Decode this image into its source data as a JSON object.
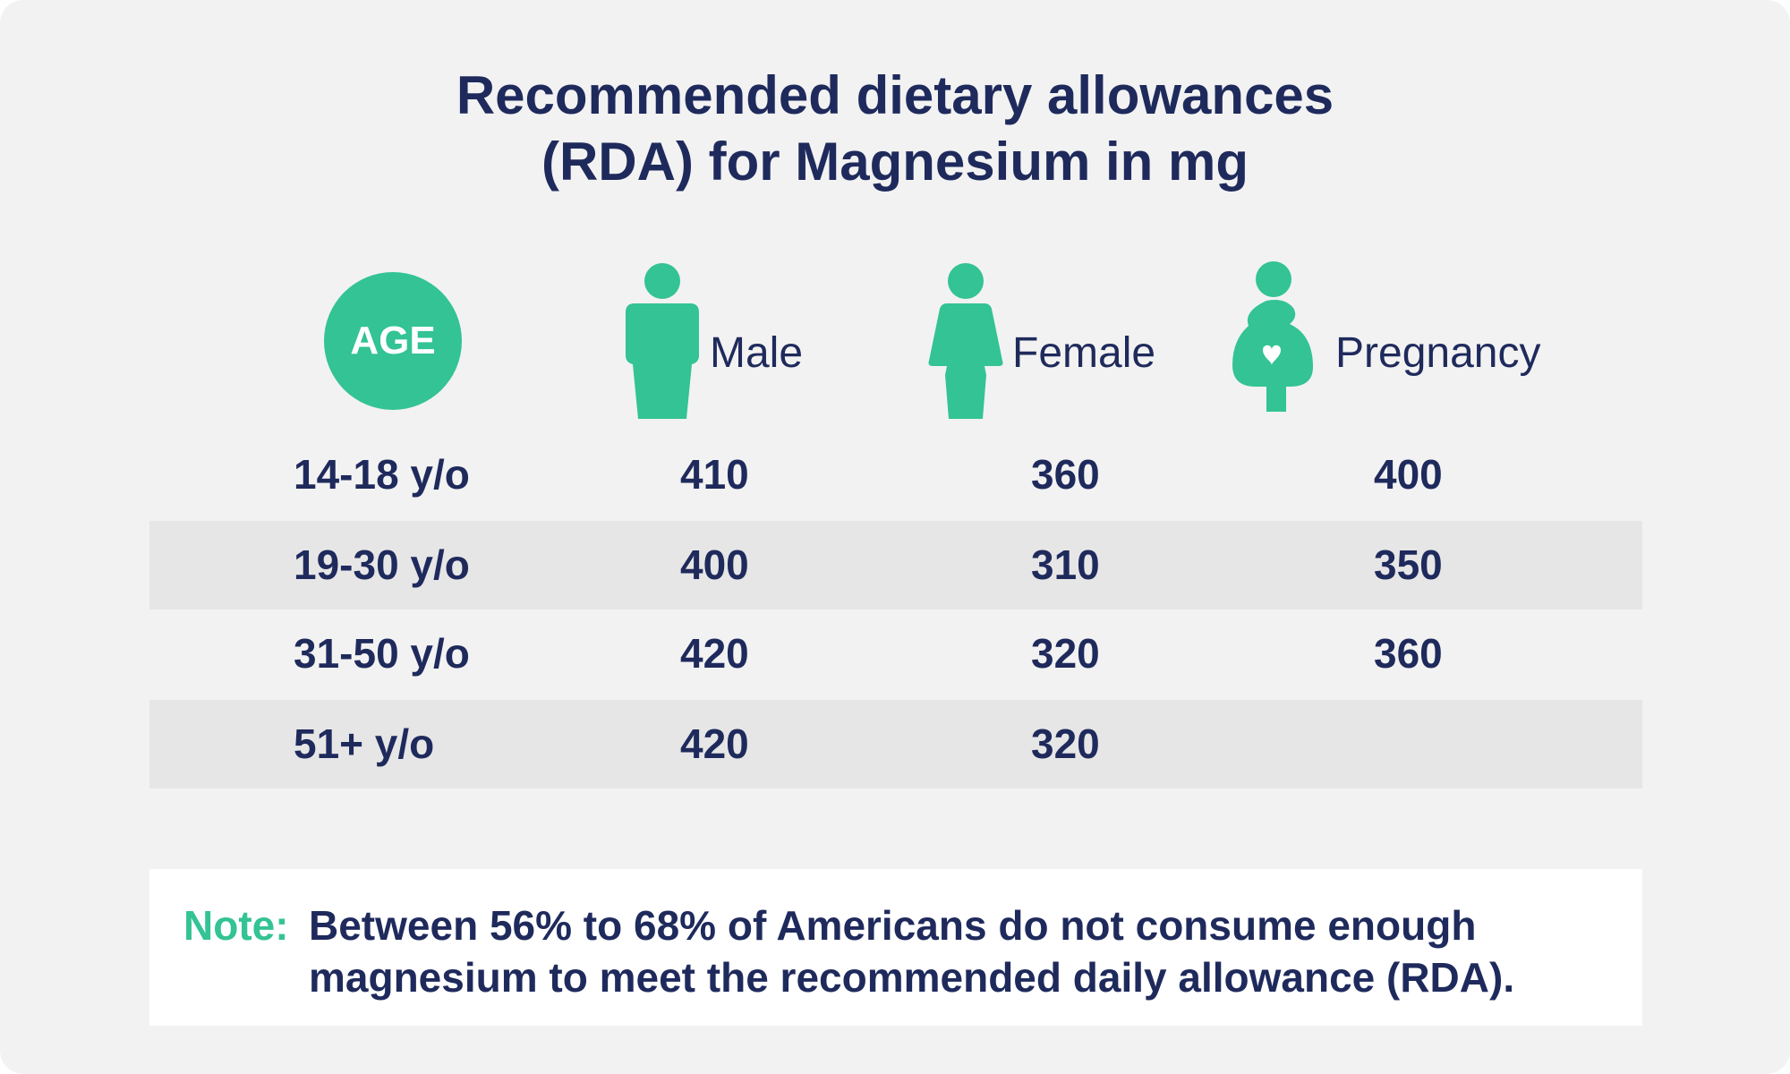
{
  "title": {
    "line1": "Recommended dietary allowances",
    "line2": "(RDA) for Magnesium in mg"
  },
  "chart_data": {
    "type": "table",
    "title": "Recommended dietary allowances (RDA) for Magnesium in mg",
    "age_header": "AGE",
    "columns": [
      "Male",
      "Female",
      "Pregnancy"
    ],
    "column_icons": [
      "male-icon",
      "female-icon",
      "pregnancy-icon"
    ],
    "rows": [
      {
        "age": "14-18 y/o",
        "male": "410",
        "female": "360",
        "pregnancy": "400"
      },
      {
        "age": "19-30 y/o",
        "male": "400",
        "female": "310",
        "pregnancy": "350"
      },
      {
        "age": "31-50 y/o",
        "male": "420",
        "female": "320",
        "pregnancy": "360"
      },
      {
        "age": "51+ y/o",
        "male": "420",
        "female": "320",
        "pregnancy": ""
      }
    ],
    "unit": "mg"
  },
  "note": {
    "label": "Note:",
    "text": "Between 56% to 68% of Americans do not consume enough magnesium to meet the recommended daily allowance (RDA)."
  },
  "colors": {
    "accent": "#33c394",
    "text": "#1f2a5c",
    "background": "#f2f2f2",
    "row_shade": "#e6e6e6",
    "note_bg": "#ffffff"
  }
}
